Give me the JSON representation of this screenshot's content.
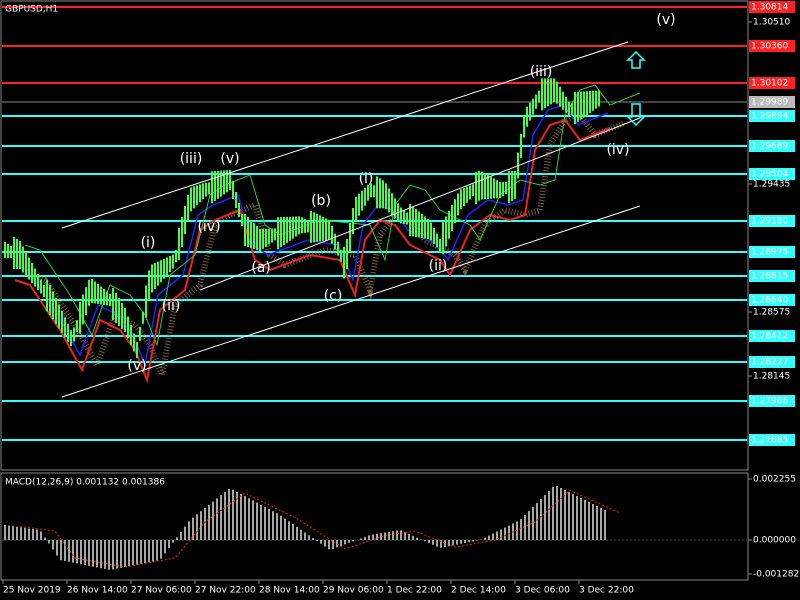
{
  "title": "GBPUSD,H1",
  "price_levels": [
    "1.30814",
    "1.30360",
    "1.30102",
    "1.29989",
    "1.29894",
    "1.29689",
    "1.29504",
    "1.29180",
    "1.28975",
    "1.28815",
    "1.28640",
    "1.28412",
    "1.28227",
    "1.27966",
    "1.27685"
  ],
  "price_scale": [
    "1.30510",
    "1.29435",
    "1.28575",
    "1.28145"
  ],
  "wave_labels": [
    "(v)",
    "(iii)",
    "(iv)",
    "(ii)",
    "(i)",
    "(b)",
    "(a)",
    "(c)",
    "(iii)",
    "(v)",
    "(iv)",
    "(i)",
    "(ii)",
    "(v)"
  ],
  "macd": {
    "label": "MACD(12,26,9) 0.001132 0.001386",
    "scale": [
      "0.002255",
      "0.000000",
      "-0.001282"
    ]
  },
  "time_axis": [
    "25 Nov 2019",
    "26 Nov 14:00",
    "27 Nov 06:00",
    "27 Nov 22:00",
    "28 Nov 14:00",
    "29 Nov 06:00",
    "1 Dec 22:00",
    "2 Dec 14:00",
    "3 Dec 06:00",
    "3 Dec 22:00"
  ]
}
